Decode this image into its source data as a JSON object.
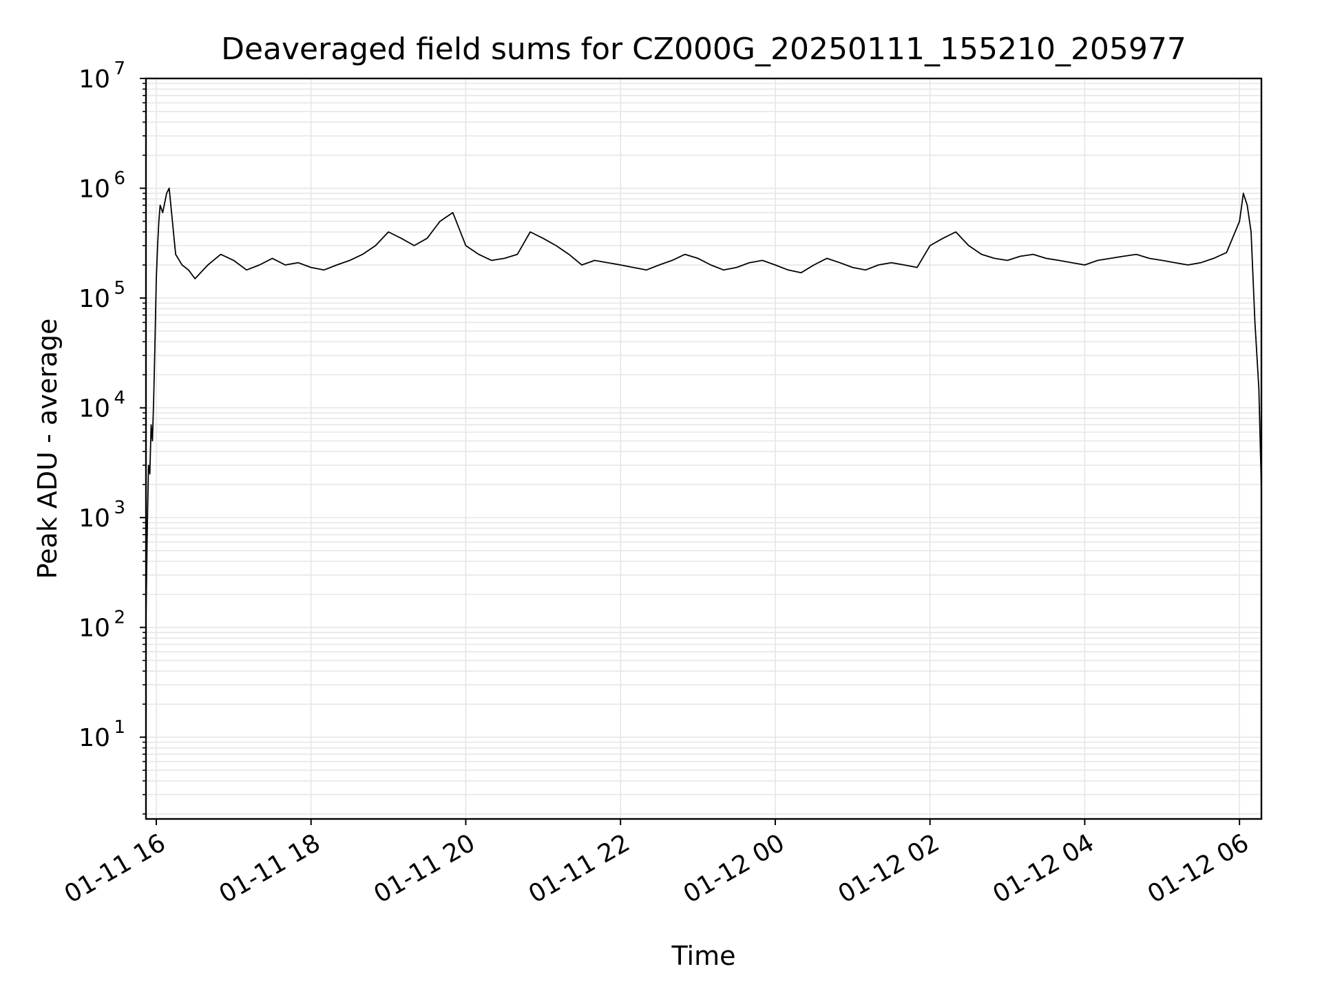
{
  "chart_data": {
    "type": "line",
    "title": "Deaveraged field sums for CZ000G_20250111_155210_205977",
    "xlabel": "Time",
    "ylabel": "Peak ADU - average",
    "x_scale": "time",
    "y_scale": "log",
    "xlim": [
      "2025-01-11 15:52",
      "2025-01-12 06:17"
    ],
    "ylim": [
      1.8,
      10000000
    ],
    "grid": true,
    "grid_minor": true,
    "legend": "none",
    "line_color": "#000000",
    "grid_color": "#e6e6e6",
    "x_ticks": [
      {
        "value": "2025-01-11 16:00",
        "label": "01-11 16"
      },
      {
        "value": "2025-01-11 18:00",
        "label": "01-11 18"
      },
      {
        "value": "2025-01-11 20:00",
        "label": "01-11 20"
      },
      {
        "value": "2025-01-11 22:00",
        "label": "01-11 22"
      },
      {
        "value": "2025-01-12 00:00",
        "label": "01-12 00"
      },
      {
        "value": "2025-01-12 02:00",
        "label": "01-12 02"
      },
      {
        "value": "2025-01-12 04:00",
        "label": "01-12 04"
      },
      {
        "value": "2025-01-12 06:00",
        "label": "01-12 06"
      }
    ],
    "y_ticks": [
      {
        "value": 10,
        "base": "10",
        "exp": "1"
      },
      {
        "value": 100,
        "base": "10",
        "exp": "2"
      },
      {
        "value": 1000,
        "base": "10",
        "exp": "3"
      },
      {
        "value": 10000,
        "base": "10",
        "exp": "4"
      },
      {
        "value": 100000,
        "base": "10",
        "exp": "5"
      },
      {
        "value": 1000000,
        "base": "10",
        "exp": "6"
      },
      {
        "value": 10000000,
        "base": "10",
        "exp": "7"
      }
    ],
    "series": [
      {
        "x": [
          "2025-01-11 15:52",
          "2025-01-11 15:53",
          "2025-01-11 15:54",
          "2025-01-11 15:55",
          "2025-01-11 15:56",
          "2025-01-11 15:57",
          "2025-01-11 15:58",
          "2025-01-11 15:59",
          "2025-01-11 16:00",
          "2025-01-11 16:01",
          "2025-01-11 16:02",
          "2025-01-11 16:03",
          "2025-01-11 16:05",
          "2025-01-11 16:08",
          "2025-01-11 16:10",
          "2025-01-11 16:15",
          "2025-01-11 16:20",
          "2025-01-11 16:25",
          "2025-01-11 16:30",
          "2025-01-11 16:40",
          "2025-01-11 16:50",
          "2025-01-11 17:00",
          "2025-01-11 17:10",
          "2025-01-11 17:20",
          "2025-01-11 17:30",
          "2025-01-11 17:40",
          "2025-01-11 17:50",
          "2025-01-11 18:00",
          "2025-01-11 18:10",
          "2025-01-11 18:20",
          "2025-01-11 18:30",
          "2025-01-11 18:40",
          "2025-01-11 18:50",
          "2025-01-11 19:00",
          "2025-01-11 19:10",
          "2025-01-11 19:20",
          "2025-01-11 19:30",
          "2025-01-11 19:40",
          "2025-01-11 19:50",
          "2025-01-11 20:00",
          "2025-01-11 20:10",
          "2025-01-11 20:20",
          "2025-01-11 20:30",
          "2025-01-11 20:40",
          "2025-01-11 20:50",
          "2025-01-11 21:00",
          "2025-01-11 21:10",
          "2025-01-11 21:20",
          "2025-01-11 21:30",
          "2025-01-11 21:40",
          "2025-01-11 21:50",
          "2025-01-11 22:00",
          "2025-01-11 22:10",
          "2025-01-11 22:20",
          "2025-01-11 22:30",
          "2025-01-11 22:40",
          "2025-01-11 22:50",
          "2025-01-11 23:00",
          "2025-01-11 23:10",
          "2025-01-11 23:20",
          "2025-01-11 23:30",
          "2025-01-11 23:40",
          "2025-01-11 23:50",
          "2025-01-12 00:00",
          "2025-01-12 00:10",
          "2025-01-12 00:20",
          "2025-01-12 00:30",
          "2025-01-12 00:40",
          "2025-01-12 00:50",
          "2025-01-12 01:00",
          "2025-01-12 01:10",
          "2025-01-12 01:20",
          "2025-01-12 01:30",
          "2025-01-12 01:40",
          "2025-01-12 01:50",
          "2025-01-12 02:00",
          "2025-01-12 02:10",
          "2025-01-12 02:20",
          "2025-01-12 02:30",
          "2025-01-12 02:40",
          "2025-01-12 02:50",
          "2025-01-12 03:00",
          "2025-01-12 03:10",
          "2025-01-12 03:20",
          "2025-01-12 03:30",
          "2025-01-12 03:40",
          "2025-01-12 03:50",
          "2025-01-12 04:00",
          "2025-01-12 04:10",
          "2025-01-12 04:20",
          "2025-01-12 04:30",
          "2025-01-12 04:40",
          "2025-01-12 04:50",
          "2025-01-12 05:00",
          "2025-01-12 05:10",
          "2025-01-12 05:20",
          "2025-01-12 05:30",
          "2025-01-12 05:40",
          "2025-01-12 05:50",
          "2025-01-12 06:00",
          "2025-01-12 06:03",
          "2025-01-12 06:06",
          "2025-01-12 06:09",
          "2025-01-12 06:12",
          "2025-01-12 06:15",
          "2025-01-12 06:17"
        ],
        "y": [
          120,
          800,
          3000,
          2500,
          7000,
          5000,
          12000,
          40000,
          150000,
          300000,
          500000,
          700000,
          600000,
          900000,
          1000000,
          250000,
          200000,
          180000,
          150000,
          200000,
          250000,
          220000,
          180000,
          200000,
          230000,
          200000,
          210000,
          190000,
          180000,
          200000,
          220000,
          250000,
          300000,
          400000,
          350000,
          300000,
          350000,
          500000,
          600000,
          300000,
          250000,
          220000,
          230000,
          250000,
          400000,
          350000,
          300000,
          250000,
          200000,
          220000,
          210000,
          200000,
          190000,
          180000,
          200000,
          220000,
          250000,
          230000,
          200000,
          180000,
          190000,
          210000,
          220000,
          200000,
          180000,
          170000,
          200000,
          230000,
          210000,
          190000,
          180000,
          200000,
          210000,
          200000,
          190000,
          300000,
          350000,
          400000,
          300000,
          250000,
          230000,
          220000,
          240000,
          250000,
          230000,
          220000,
          210000,
          200000,
          220000,
          230000,
          240000,
          250000,
          230000,
          220000,
          210000,
          200000,
          210000,
          230000,
          260000,
          500000,
          900000,
          700000,
          400000,
          60000,
          15000,
          1800
        ]
      }
    ]
  }
}
